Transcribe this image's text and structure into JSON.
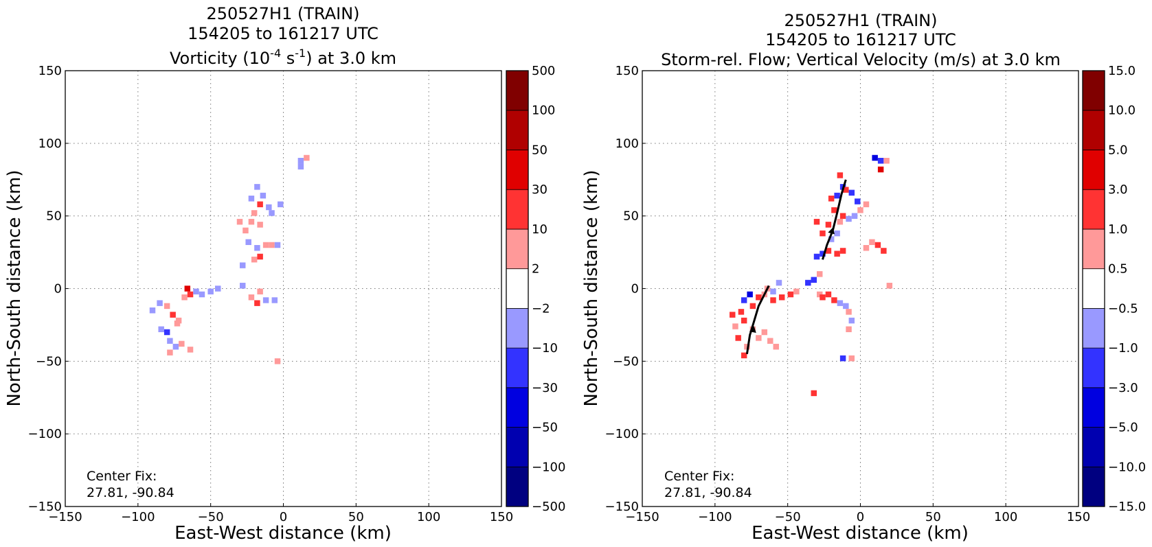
{
  "colors": {
    "neg": [
      "#000080",
      "#0000b0",
      "#0000e0",
      "#3333ff",
      "#9999ff"
    ],
    "zero": "#ffffff",
    "pos": [
      "#ff9999",
      "#ff3333",
      "#e00000",
      "#b00000",
      "#800000"
    ],
    "streamline": "#000000"
  },
  "chart_data": [
    {
      "type": "heatmap",
      "title": [
        "250527H1 (TRAIN)",
        "154205 to 161217 UTC"
      ],
      "subtitle": {
        "pre": "Vorticity (10",
        "sup1": "-4",
        "mid": " s",
        "sup2": "-1",
        "post": ") at 3.0 km"
      },
      "xlabel": "East-West distance (km)",
      "ylabel": "North-South distance (km)",
      "xlim": [
        -150,
        150
      ],
      "ylim": [
        -150,
        150
      ],
      "xticks": [
        -150,
        -100,
        -50,
        0,
        50,
        100,
        150
      ],
      "yticks": [
        -150,
        -100,
        -50,
        0,
        50,
        100,
        150
      ],
      "tick_labels": [
        "−150",
        "−100",
        "−50",
        "0",
        "50",
        "100",
        "150"
      ],
      "grid": true,
      "annotation": [
        "Center Fix:",
        "27.81, -90.84"
      ],
      "colorbar_levels": [
        "−500",
        "−100",
        "−50",
        "−30",
        "−10",
        "−2",
        "2",
        "10",
        "30",
        "50",
        "100",
        "500"
      ],
      "cells": [
        [
          -90,
          -15,
          -1
        ],
        [
          -85,
          -10,
          -1
        ],
        [
          -80,
          -12,
          1
        ],
        [
          -76,
          -18,
          2
        ],
        [
          -72,
          -22,
          1
        ],
        [
          -68,
          -6,
          1
        ],
        [
          -64,
          -4,
          2
        ],
        [
          -66,
          0,
          3
        ],
        [
          -60,
          -2,
          -1
        ],
        [
          -56,
          -4,
          -1
        ],
        [
          -50,
          -2,
          -1
        ],
        [
          -45,
          0,
          -1
        ],
        [
          -84,
          -28,
          -1
        ],
        [
          -80,
          -30,
          -2
        ],
        [
          -78,
          -36,
          -1
        ],
        [
          -74,
          -40,
          -1
        ],
        [
          -70,
          -38,
          1
        ],
        [
          -64,
          -42,
          1
        ],
        [
          -78,
          -44,
          1
        ],
        [
          -73,
          -24,
          1
        ],
        [
          -28,
          2,
          -1
        ],
        [
          -22,
          -6,
          1
        ],
        [
          -16,
          -2,
          1
        ],
        [
          -18,
          -10,
          2
        ],
        [
          -12,
          -8,
          -1
        ],
        [
          -6,
          -8,
          -1
        ],
        [
          -20,
          20,
          1
        ],
        [
          -16,
          22,
          2
        ],
        [
          -24,
          32,
          -1
        ],
        [
          -18,
          28,
          -1
        ],
        [
          -28,
          16,
          -1
        ],
        [
          -12,
          30,
          1
        ],
        [
          -8,
          30,
          1
        ],
        [
          -26,
          40,
          1
        ],
        [
          -22,
          46,
          1
        ],
        [
          -16,
          44,
          1
        ],
        [
          -20,
          52,
          1
        ],
        [
          -30,
          46,
          1
        ],
        [
          -22,
          62,
          -1
        ],
        [
          -14,
          64,
          -1
        ],
        [
          -18,
          70,
          -1
        ],
        [
          -10,
          56,
          -1
        ],
        [
          -16,
          58,
          2
        ],
        [
          -8,
          52,
          -1
        ],
        [
          -2,
          58,
          -1
        ],
        [
          -4,
          30,
          -1
        ],
        [
          12,
          88,
          -1
        ],
        [
          16,
          90,
          1
        ],
        [
          12,
          84,
          -1
        ],
        [
          -4,
          -50,
          1
        ]
      ]
    },
    {
      "type": "heatmap",
      "title": [
        "250527H1 (TRAIN)",
        "154205 to 161217 UTC"
      ],
      "subtitle_text": "Storm-rel. Flow; Vertical Velocity (m/s) at 3.0 km",
      "xlabel": "East-West distance (km)",
      "ylabel": "North-South distance (km)",
      "xlim": [
        -150,
        150
      ],
      "ylim": [
        -150,
        150
      ],
      "xticks": [
        -150,
        -100,
        -50,
        0,
        50,
        100,
        150
      ],
      "yticks": [
        -150,
        -100,
        -50,
        0,
        50,
        100,
        150
      ],
      "tick_labels": [
        "−150",
        "−100",
        "−50",
        "0",
        "50",
        "100",
        "150"
      ],
      "grid": true,
      "annotation": [
        "Center Fix:",
        "27.81, -90.84"
      ],
      "colorbar_levels": [
        "−15.0",
        "−10.0",
        "−5.0",
        "−3.0",
        "−1.0",
        "−0.5",
        "0.5",
        "1.0",
        "3.0",
        "5.0",
        "10.0",
        "15.0"
      ],
      "cells": [
        [
          -88,
          -18,
          2
        ],
        [
          -82,
          -16,
          2
        ],
        [
          -86,
          -26,
          1
        ],
        [
          -80,
          -22,
          2
        ],
        [
          -74,
          -12,
          2
        ],
        [
          -70,
          -6,
          2
        ],
        [
          -66,
          -4,
          1
        ],
        [
          -60,
          -8,
          2
        ],
        [
          -54,
          -6,
          2
        ],
        [
          -60,
          -2,
          -1
        ],
        [
          -56,
          4,
          -1
        ],
        [
          -64,
          0,
          1
        ],
        [
          -80,
          -8,
          -2
        ],
        [
          -76,
          -4,
          -3
        ],
        [
          -84,
          -34,
          2
        ],
        [
          -78,
          -40,
          1
        ],
        [
          -70,
          -34,
          1
        ],
        [
          -62,
          -36,
          1
        ],
        [
          -58,
          -40,
          1
        ],
        [
          -66,
          -30,
          1
        ],
        [
          -74,
          -28,
          1
        ],
        [
          -80,
          -46,
          2
        ],
        [
          -48,
          -4,
          2
        ],
        [
          -44,
          -2,
          1
        ],
        [
          -36,
          4,
          -2
        ],
        [
          -32,
          6,
          -2
        ],
        [
          -28,
          10,
          1
        ],
        [
          -28,
          -4,
          1
        ],
        [
          -22,
          -4,
          2
        ],
        [
          -18,
          -8,
          2
        ],
        [
          -26,
          -6,
          2
        ],
        [
          -14,
          -10,
          -1
        ],
        [
          -10,
          -12,
          -1
        ],
        [
          -8,
          -16,
          1
        ],
        [
          -6,
          -22,
          -1
        ],
        [
          -8,
          -28,
          1
        ],
        [
          -30,
          22,
          -2
        ],
        [
          -26,
          24,
          -2
        ],
        [
          -22,
          26,
          2
        ],
        [
          -16,
          24,
          2
        ],
        [
          -12,
          26,
          2
        ],
        [
          -20,
          34,
          -1
        ],
        [
          -16,
          38,
          -1
        ],
        [
          -26,
          38,
          2
        ],
        [
          -22,
          44,
          2
        ],
        [
          -30,
          46,
          2
        ],
        [
          -18,
          54,
          2
        ],
        [
          -12,
          50,
          2
        ],
        [
          -14,
          46,
          1
        ],
        [
          -8,
          48,
          -1
        ],
        [
          -4,
          50,
          -1
        ],
        [
          0,
          54,
          1
        ],
        [
          4,
          58,
          1
        ],
        [
          -2,
          60,
          -2
        ],
        [
          -6,
          66,
          -2
        ],
        [
          -12,
          70,
          -2
        ],
        [
          -16,
          64,
          -2
        ],
        [
          -20,
          62,
          2
        ],
        [
          -14,
          78,
          2
        ],
        [
          -10,
          68,
          2
        ],
        [
          12,
          30,
          2
        ],
        [
          16,
          26,
          2
        ],
        [
          8,
          32,
          1
        ],
        [
          4,
          28,
          1
        ],
        [
          10,
          90,
          -3
        ],
        [
          14,
          88,
          -2
        ],
        [
          14,
          82,
          3
        ],
        [
          18,
          88,
          1
        ],
        [
          -32,
          -72,
          2
        ],
        [
          -6,
          -48,
          1
        ],
        [
          -12,
          -48,
          -2
        ],
        [
          20,
          2,
          1
        ]
      ],
      "streamlines": [
        [
          [
            -78,
            -45
          ],
          [
            -76,
            -32
          ],
          [
            -73,
            -22
          ],
          [
            -70,
            -12
          ],
          [
            -66,
            -4
          ],
          [
            -63,
            2
          ]
        ],
        [
          [
            -26,
            20
          ],
          [
            -23,
            30
          ],
          [
            -19,
            40
          ],
          [
            -16,
            52
          ],
          [
            -13,
            65
          ],
          [
            -10,
            75
          ]
        ]
      ],
      "arrows": [
        [
          -74,
          -30,
          0.2,
          1
        ],
        [
          -20,
          38,
          0.28,
          1
        ]
      ]
    }
  ]
}
